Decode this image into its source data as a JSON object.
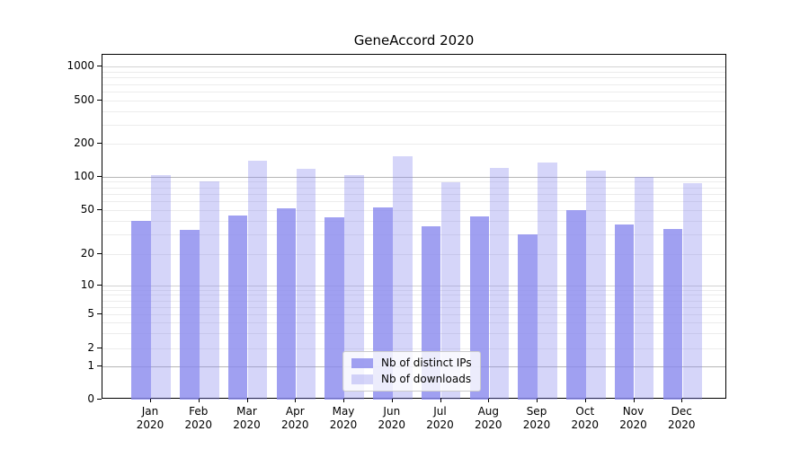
{
  "chart_data": {
    "type": "bar",
    "title": "GeneAccord 2020",
    "categories": [
      {
        "month": "Jan",
        "year": "2020"
      },
      {
        "month": "Feb",
        "year": "2020"
      },
      {
        "month": "Mar",
        "year": "2020"
      },
      {
        "month": "Apr",
        "year": "2020"
      },
      {
        "month": "May",
        "year": "2020"
      },
      {
        "month": "Jun",
        "year": "2020"
      },
      {
        "month": "Jul",
        "year": "2020"
      },
      {
        "month": "Aug",
        "year": "2020"
      },
      {
        "month": "Sep",
        "year": "2020"
      },
      {
        "month": "Oct",
        "year": "2020"
      },
      {
        "month": "Nov",
        "year": "2020"
      },
      {
        "month": "Dec",
        "year": "2020"
      }
    ],
    "series": [
      {
        "name": "Nb of distinct IPs",
        "values": [
          40,
          33,
          45,
          52,
          43,
          53,
          36,
          44,
          30,
          50,
          37,
          34
        ],
        "color": "#8888ee",
        "alpha": 0.8
      },
      {
        "name": "Nb of downloads",
        "values": [
          103,
          91,
          140,
          118,
          103,
          155,
          89,
          120,
          134,
          113,
          100,
          88
        ],
        "color": "#8888ee",
        "alpha": 0.35
      }
    ],
    "y_ticks": [
      1000,
      500,
      200,
      100,
      50,
      20,
      10,
      5,
      2,
      1,
      0
    ],
    "y_scale": "symlog",
    "ylim": [
      0,
      1400
    ],
    "xlabel": "",
    "ylabel": "",
    "grid": true,
    "legend_position": "lower-center"
  }
}
